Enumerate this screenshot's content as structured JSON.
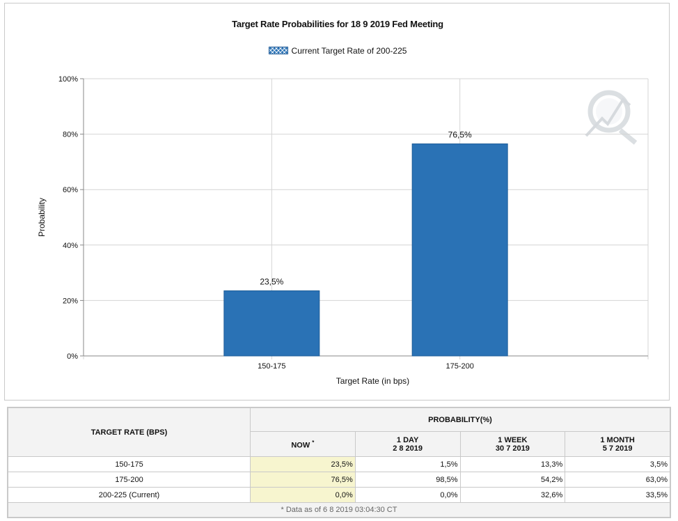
{
  "chart_data": {
    "type": "bar",
    "title": "Target Rate Probabilities for 18 9 2019 Fed Meeting",
    "legend": "Current Target Rate of 200-225",
    "categories": [
      "150-175",
      "175-200"
    ],
    "values": [
      23.5,
      76.5
    ],
    "value_labels": [
      "23,5%",
      "76,5%"
    ],
    "xlabel": "Target Rate (in bps)",
    "ylabel": "Probability",
    "ylim": [
      0,
      100
    ],
    "yticks": [
      0,
      20,
      40,
      60,
      80,
      100
    ],
    "ytick_labels": [
      "0%",
      "20%",
      "40%",
      "60%",
      "80%",
      "100%"
    ],
    "grid": true,
    "bar_color": "#2a72b5"
  },
  "table": {
    "header_target": "TARGET RATE (BPS)",
    "header_probability": "PROBABILITY(%)",
    "now_label": "NOW",
    "now_mark": "*",
    "day_label": "1 DAY",
    "day_date": "2 8 2019",
    "week_label": "1 WEEK",
    "week_date": "30 7 2019",
    "month_label": "1 MONTH",
    "month_date": "5 7 2019",
    "rows": [
      {
        "rate": "150-175",
        "now": "23,5%",
        "day": "1,5%",
        "week": "13,3%",
        "month": "3,5%"
      },
      {
        "rate": "175-200",
        "now": "76,5%",
        "day": "98,5%",
        "week": "54,2%",
        "month": "63,0%"
      },
      {
        "rate": "200-225 (Current)",
        "now": "0,0%",
        "day": "0,0%",
        "week": "32,6%",
        "month": "33,5%"
      }
    ],
    "footnote": "* Data as of 6 8 2019 03:04:30 CT"
  }
}
